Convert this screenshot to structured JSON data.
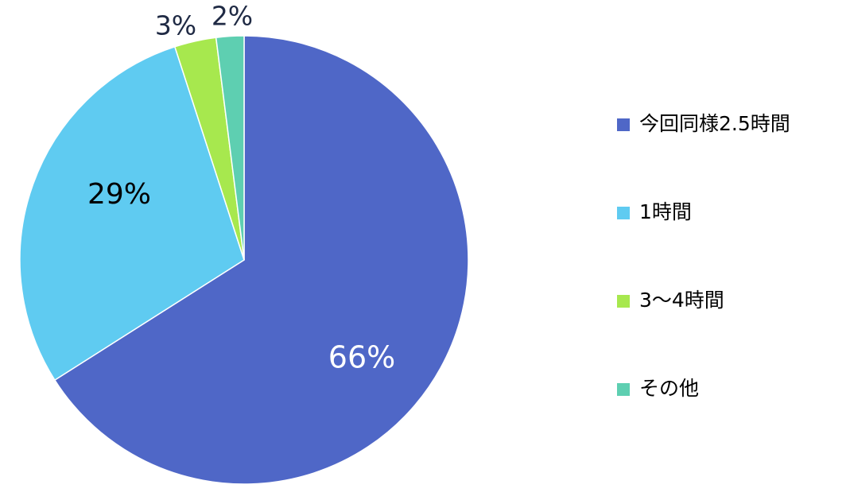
{
  "chart_data": {
    "type": "pie",
    "title": "",
    "series": [
      {
        "label": "今回同様2.5時間",
        "value": 66,
        "value_label": "66%",
        "color": "#4f67c7"
      },
      {
        "label": "1時間",
        "value": 29,
        "value_label": "29%",
        "color": "#5fcbf1"
      },
      {
        "label": "3～4時間",
        "value": 3,
        "value_label": "3%",
        "color": "#a7e84e"
      },
      {
        "label": "その他",
        "value": 2,
        "value_label": "2%",
        "color": "#5ecfb1"
      }
    ],
    "start_angle": "12 o'clock",
    "direction": "clockwise",
    "legend_position": "right",
    "data_label_colors": [
      "#ffffff",
      "#000000",
      "#1f2a44",
      "#1f2a44"
    ]
  }
}
